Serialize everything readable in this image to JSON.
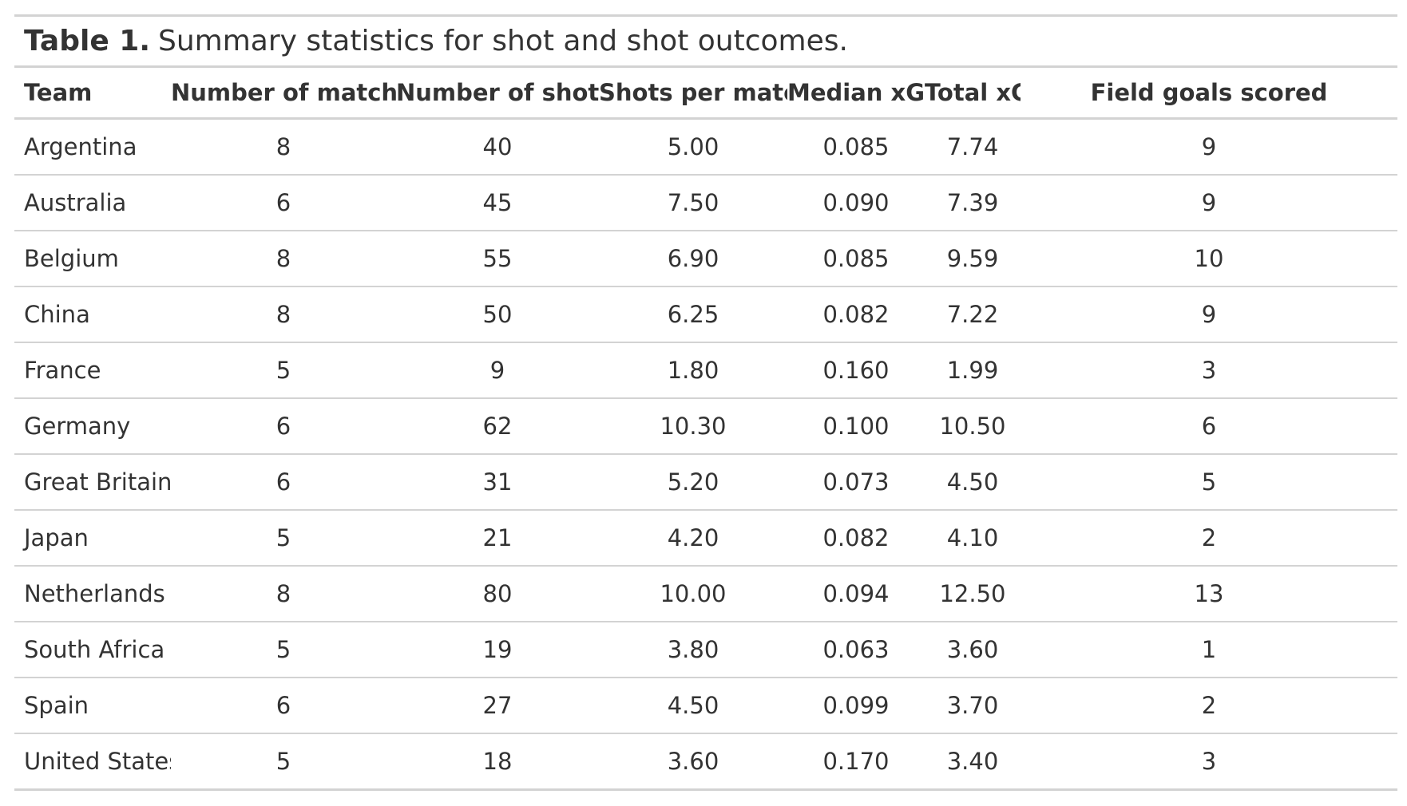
{
  "table": {
    "caption_label": "Table 1.",
    "caption_text": "Summary statistics for shot and shot outcomes.",
    "columns": [
      "Team",
      "Number of matches",
      "Number of shots",
      "Shots per match",
      "Median xG",
      "Total xG",
      "Field goals scored"
    ],
    "rows": [
      [
        "Argentina",
        "8",
        "40",
        "5.00",
        "0.085",
        "7.74",
        "9"
      ],
      [
        "Australia",
        "6",
        "45",
        "7.50",
        "0.090",
        "7.39",
        "9"
      ],
      [
        "Belgium",
        "8",
        "55",
        "6.90",
        "0.085",
        "9.59",
        "10"
      ],
      [
        "China",
        "8",
        "50",
        "6.25",
        "0.082",
        "7.22",
        "9"
      ],
      [
        "France",
        "5",
        "9",
        "1.80",
        "0.160",
        "1.99",
        "3"
      ],
      [
        "Germany",
        "6",
        "62",
        "10.30",
        "0.100",
        "10.50",
        "6"
      ],
      [
        "Great Britain",
        "6",
        "31",
        "5.20",
        "0.073",
        "4.50",
        "5"
      ],
      [
        "Japan",
        "5",
        "21",
        "4.20",
        "0.082",
        "4.10",
        "2"
      ],
      [
        "Netherlands",
        "8",
        "80",
        "10.00",
        "0.094",
        "12.50",
        "13"
      ],
      [
        "South Africa",
        "5",
        "19",
        "3.80",
        "0.063",
        "3.60",
        "1"
      ],
      [
        "Spain",
        "6",
        "27",
        "4.50",
        "0.099",
        "3.70",
        "2"
      ],
      [
        "United States",
        "5",
        "18",
        "3.60",
        "0.170",
        "3.40",
        "3"
      ]
    ]
  }
}
